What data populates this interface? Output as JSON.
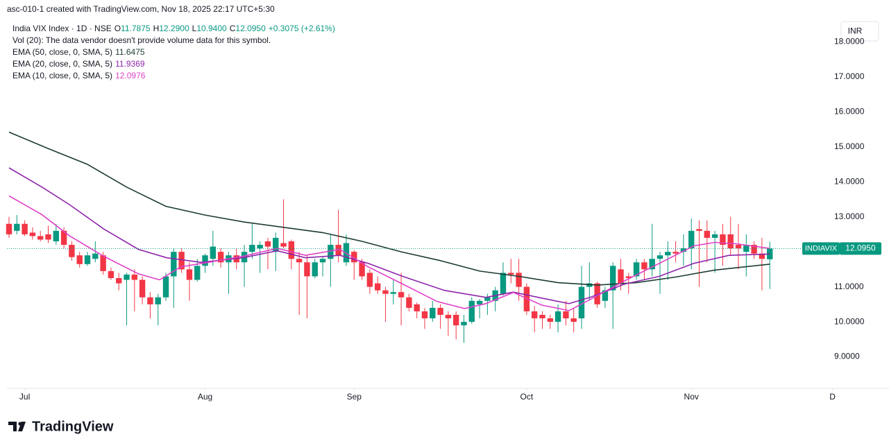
{
  "credit": "asc-010-1 created with TradingView.com, Nov 18, 2025 22:17 UTC+5:30",
  "logo": "TradingView",
  "currency": "INR",
  "chart_data": {
    "type": "candlestick",
    "legend": {
      "symbol": "India VIX Index · 1D · NSE",
      "items": [
        {
          "label": "O",
          "value": "11.7875"
        },
        {
          "label": "H",
          "value": "12.2900"
        },
        {
          "label": "L",
          "value": "10.9400"
        },
        {
          "label": "C",
          "value": "12.0950"
        }
      ],
      "change": "+0.3075 (+2.61%)",
      "volume_note": "Vol (20): The data vendor doesn't provide volume data for this symbol."
    },
    "price_tag": {
      "symbol": "INDIAVIX",
      "label": "12.0950"
    },
    "up_color": "#089981",
    "down_color": "#f23645",
    "xlim": [
      -1.15,
      112.2
    ],
    "ylim": [
      8.1,
      18.6
    ],
    "xticks": [
      {
        "value": 2,
        "label": "Jul"
      },
      {
        "value": 25,
        "label": "Aug"
      },
      {
        "value": 44,
        "label": "Sep"
      },
      {
        "value": 66,
        "label": "Oct"
      },
      {
        "value": 87,
        "label": "Nov"
      },
      {
        "value": 105,
        "label": "D"
      }
    ],
    "yticks": [
      {
        "value": 9,
        "label": "9.0000"
      },
      {
        "value": 10,
        "label": "10.0000"
      },
      {
        "value": 11,
        "label": "11.0000"
      },
      {
        "value": 13,
        "label": "13.0000"
      },
      {
        "value": 14,
        "label": "14.0000"
      },
      {
        "value": 15,
        "label": "15.0000"
      },
      {
        "value": 16,
        "label": "16.0000"
      },
      {
        "value": 17,
        "label": "17.0000"
      },
      {
        "value": 18,
        "label": "18.0000"
      }
    ],
    "open": [
      12.8,
      12.6,
      12.8,
      12.55,
      12.45,
      12.5,
      12.3,
      12.6,
      12.2,
      11.9,
      11.65,
      11.8,
      11.9,
      11.45,
      11.25,
      11.2,
      11.35,
      11.2,
      10.7,
      10.5,
      10.7,
      11.3,
      12.0,
      11.5,
      11.2,
      11.6,
      11.8,
      12.0,
      11.7,
      11.9,
      11.7,
      12.0,
      12.1,
      12.3,
      12.0,
      12.25,
      12.3,
      11.8,
      11.7,
      11.3,
      11.7,
      11.8,
      12.2,
      11.7,
      12.0,
      11.7,
      11.4,
      11.1,
      10.9,
      10.8,
      10.85,
      10.7,
      10.5,
      10.3,
      10.1,
      10.4,
      10.2,
      10.2,
      9.9,
      10.0,
      10.5,
      10.6,
      10.6,
      10.8,
      11.4,
      11.4,
      11.0,
      10.3,
      10.2,
      10.1,
      10.0,
      10.3,
      10.1,
      10.1,
      11.0,
      11.1,
      10.6,
      10.9,
      11.5,
      11.3,
      11.3,
      11.7,
      11.5,
      11.8,
      11.9,
      12.0,
      12.0,
      12.1,
      12.65,
      12.6,
      12.4,
      12.5,
      12.5,
      12.2,
      12.0,
      12.2,
      11.95,
      11.7875
    ],
    "high": [
      13.0,
      13.05,
      12.9,
      12.7,
      12.6,
      12.75,
      12.8,
      12.7,
      12.3,
      12.0,
      12.0,
      12.3,
      12.0,
      11.55,
      11.4,
      11.4,
      11.5,
      11.3,
      10.85,
      10.8,
      11.4,
      12.1,
      12.1,
      11.7,
      11.8,
      11.95,
      12.6,
      12.1,
      12.0,
      12.1,
      12.2,
      12.8,
      12.3,
      12.4,
      12.55,
      13.5,
      12.35,
      12.0,
      11.9,
      11.8,
      11.85,
      12.5,
      13.2,
      12.5,
      12.05,
      11.8,
      11.5,
      11.3,
      11.0,
      11.2,
      11.4,
      10.8,
      10.55,
      10.4,
      10.6,
      10.5,
      10.3,
      10.3,
      10.2,
      10.7,
      10.65,
      10.8,
      11.0,
      11.7,
      11.8,
      11.8,
      11.1,
      10.45,
      10.3,
      10.2,
      10.5,
      10.6,
      10.4,
      11.6,
      11.7,
      11.15,
      11.0,
      11.7,
      11.8,
      11.4,
      11.8,
      11.8,
      12.8,
      12.0,
      12.3,
      12.3,
      12.5,
      12.95,
      12.9,
      12.9,
      12.6,
      12.8,
      13.0,
      12.8,
      12.5,
      12.3,
      12.4,
      12.29
    ],
    "low": [
      12.4,
      12.5,
      12.45,
      12.35,
      12.3,
      12.25,
      12.2,
      12.1,
      11.75,
      11.55,
      11.6,
      11.7,
      11.35,
      11.2,
      10.9,
      9.9,
      10.3,
      10.5,
      10.1,
      9.9,
      10.6,
      10.4,
      11.4,
      10.6,
      11.15,
      11.4,
      11.6,
      11.55,
      10.8,
      11.5,
      11.0,
      11.8,
      11.4,
      11.5,
      11.45,
      12.1,
      11.5,
      10.2,
      10.1,
      11.25,
      11.3,
      11.0,
      11.7,
      11.6,
      11.2,
      11.2,
      10.8,
      10.8,
      10.0,
      10.5,
      9.9,
      10.3,
      10.1,
      9.8,
      10.0,
      9.8,
      9.6,
      9.5,
      9.4,
      9.95,
      10.1,
      10.2,
      10.3,
      10.75,
      11.1,
      10.6,
      10.2,
      9.7,
      9.8,
      9.8,
      9.7,
      9.9,
      9.7,
      9.8,
      10.6,
      10.4,
      10.4,
      9.8,
      10.9,
      10.8,
      11.2,
      11.2,
      11.3,
      10.8,
      11.2,
      11.7,
      11.6,
      11.5,
      11.0,
      11.7,
      11.4,
      11.6,
      11.9,
      11.5,
      11.3,
      11.8,
      10.9,
      10.94
    ],
    "close": [
      12.5,
      12.8,
      12.5,
      12.45,
      12.35,
      12.35,
      12.6,
      12.2,
      11.85,
      11.65,
      11.9,
      11.95,
      11.45,
      11.25,
      11.1,
      11.35,
      11.2,
      10.7,
      10.5,
      10.7,
      11.3,
      12.0,
      11.5,
      11.2,
      11.6,
      11.9,
      12.15,
      11.7,
      11.9,
      11.7,
      12.0,
      12.2,
      12.2,
      12.15,
      12.4,
      12.15,
      11.8,
      11.7,
      11.3,
      11.7,
      11.8,
      12.2,
      11.9,
      12.25,
      11.7,
      11.3,
      11.0,
      10.9,
      10.8,
      10.85,
      10.7,
      10.4,
      10.3,
      10.1,
      10.4,
      10.2,
      10.1,
      9.9,
      10.0,
      10.6,
      10.6,
      10.7,
      10.9,
      11.4,
      11.35,
      11.0,
      10.3,
      10.1,
      10.1,
      10.0,
      10.3,
      10.1,
      10.0,
      11.0,
      11.1,
      10.5,
      10.9,
      11.6,
      11.1,
      11.25,
      11.7,
      11.5,
      11.8,
      11.9,
      12.0,
      11.95,
      12.1,
      12.6,
      12.6,
      12.4,
      12.5,
      12.2,
      12.1,
      12.1,
      12.2,
      11.95,
      11.8,
      12.095
    ],
    "series": [
      {
        "name": "EMA (50, close, 0, SMA, 5)",
        "color": "#1c3b30",
        "last_label": "11.6475",
        "x": [
          0,
          5,
          10,
          15,
          20,
          25,
          30,
          35,
          40,
          45,
          50,
          55,
          60,
          65,
          70,
          75,
          80,
          85,
          90,
          95,
          97
        ],
        "values": [
          15.42,
          14.95,
          14.5,
          13.85,
          13.3,
          13.05,
          12.85,
          12.7,
          12.55,
          12.3,
          12.0,
          11.75,
          11.45,
          11.3,
          11.12,
          11.05,
          11.12,
          11.28,
          11.48,
          11.6,
          11.6475
        ]
      },
      {
        "name": "EMA (20, close, 0, SMA, 5)",
        "color": "#8e24aa",
        "last_label": "11.9369",
        "x": [
          0,
          4.2,
          7.7,
          12.1,
          16.5,
          20.1,
          24.5,
          29.8,
          34.2,
          37.8,
          42.2,
          45.8,
          50.2,
          55.5,
          60.8,
          64.3,
          67.9,
          71.4,
          74.1,
          78.5,
          82.9,
          87.3,
          91.8,
          97
        ],
        "values": [
          14.4,
          13.85,
          13.35,
          12.65,
          12.07,
          11.83,
          11.7,
          11.83,
          12.03,
          11.83,
          11.9,
          11.67,
          11.3,
          10.9,
          10.7,
          10.85,
          10.68,
          10.52,
          10.7,
          11.08,
          11.3,
          11.67,
          11.9,
          11.9369
        ]
      },
      {
        "name": "EMA (10, close, 0, SMA, 5)",
        "color": "#e040c8",
        "last_label": "12.0976",
        "x": [
          0,
          4.2,
          7.7,
          12.1,
          16.5,
          19.2,
          21.9,
          25.4,
          29.8,
          34.2,
          37.8,
          42.2,
          45.8,
          50.2,
          54.6,
          58.1,
          60.8,
          64.3,
          67.9,
          71.4,
          74.1,
          78.5,
          82.9,
          87.3,
          90,
          92.7,
          97
        ],
        "values": [
          13.6,
          13.06,
          12.46,
          11.87,
          11.37,
          11.2,
          11.57,
          11.7,
          11.87,
          12.1,
          11.9,
          12.07,
          11.57,
          11.08,
          10.58,
          10.38,
          10.52,
          10.84,
          10.48,
          10.32,
          10.64,
          11.17,
          11.67,
          12.17,
          12.27,
          12.23,
          12.0976
        ]
      }
    ]
  }
}
